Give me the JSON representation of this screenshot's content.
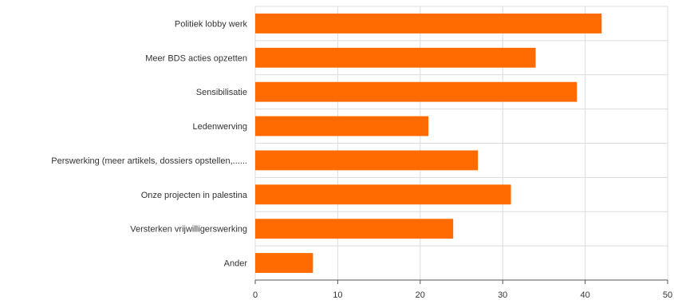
{
  "chart_data": {
    "type": "bar",
    "orientation": "horizontal",
    "categories": [
      "Politiek lobby werk",
      "Meer BDS acties opzetten",
      "Sensibilisatie",
      "Ledenwerving",
      "Perswerking (meer artikels, dossiers opstellen,......",
      "Onze projecten in palestina",
      "Versterken vrijwilligerswerking",
      "Ander"
    ],
    "values": [
      42,
      34,
      39,
      21,
      27,
      31,
      24,
      7
    ],
    "title": "",
    "xlabel": "",
    "ylabel": "",
    "xlim": [
      0,
      50
    ],
    "xticks": [
      0,
      10,
      20,
      30,
      40,
      50
    ],
    "grid": true,
    "bar_color": "#ff6b00"
  }
}
